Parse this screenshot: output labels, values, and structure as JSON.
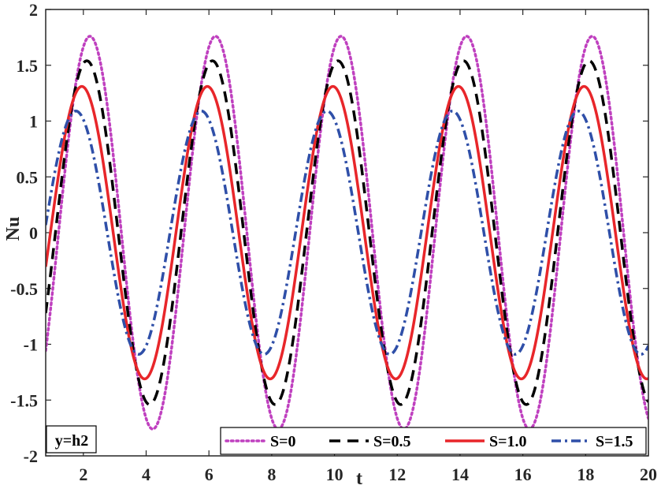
{
  "chart_data": {
    "type": "line",
    "title": "",
    "xlabel": "t",
    "ylabel": "Nu",
    "xlim": [
      0.8,
      20
    ],
    "ylim": [
      -2,
      2
    ],
    "xticks": [
      2,
      4,
      6,
      8,
      10,
      12,
      14,
      16,
      18,
      20
    ],
    "yticks": [
      -2,
      -1.5,
      -1,
      -0.5,
      0,
      0.5,
      1,
      1.5,
      2
    ],
    "xtick_labels": [
      "2",
      "4",
      "6",
      "8",
      "10",
      "12",
      "14",
      "16",
      "18",
      "20"
    ],
    "ytick_labels": [
      "-2",
      "-1.5",
      "-1",
      "-0.5",
      "0",
      "0.5",
      "1",
      "1.5",
      "2"
    ],
    "grid": false,
    "legend_position": "bottom-right",
    "annotation": "y=h2",
    "period": 4,
    "series": [
      {
        "name": "S=0",
        "amplitude": 1.76,
        "phase": 1.21,
        "color": "#bf40bf",
        "style": "dotted"
      },
      {
        "name": "S=0.5",
        "amplitude": 1.54,
        "phase": 1.11,
        "color": "#000000",
        "style": "dashed"
      },
      {
        "name": "S=1.0",
        "amplitude": 1.31,
        "phase": 0.95,
        "color": "#e8262a",
        "style": "solid"
      },
      {
        "name": "S=1.5",
        "amplitude": 1.09,
        "phase": 0.76,
        "color": "#2f4fa8",
        "style": "dashdot"
      }
    ]
  }
}
